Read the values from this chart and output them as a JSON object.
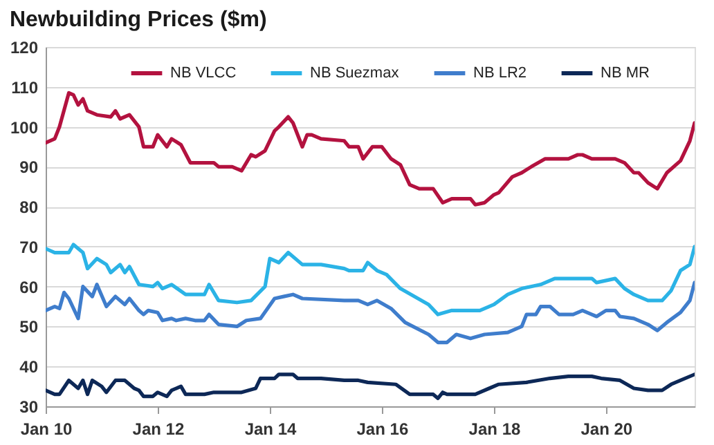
{
  "chart_data": {
    "type": "line",
    "title": "Newbuilding Prices ($m)",
    "xlim": [
      "2010-01",
      "2021-08"
    ],
    "xticks": [
      {
        "value": "2010-01",
        "label": "Jan 10"
      },
      {
        "value": "2012-01",
        "label": "Jan 12"
      },
      {
        "value": "2014-01",
        "label": "Jan 14"
      },
      {
        "value": "2016-01",
        "label": "Jan 16"
      },
      {
        "value": "2018-01",
        "label": "Jan 18"
      },
      {
        "value": "2020-01",
        "label": "Jan 20"
      }
    ],
    "ylim": [
      30,
      120
    ],
    "yticks": [
      30,
      40,
      50,
      60,
      70,
      80,
      90,
      100,
      110,
      120
    ],
    "grid": "y",
    "legend": "top",
    "line_style": "solid",
    "marker": "none",
    "series": [
      {
        "name": "NB VLCC",
        "color": "#b3123f",
        "x": [
          "2010-01",
          "2010-03",
          "2010-04",
          "2010-06",
          "2010-07",
          "2010-08",
          "2010-09",
          "2010-10",
          "2010-12",
          "2011-03",
          "2011-04",
          "2011-05",
          "2011-07",
          "2011-09",
          "2011-10",
          "2011-12",
          "2012-01",
          "2012-03",
          "2012-04",
          "2012-06",
          "2012-08",
          "2013-01",
          "2013-02",
          "2013-05",
          "2013-07",
          "2013-09",
          "2013-10",
          "2013-12",
          "2014-02",
          "2014-03",
          "2014-05",
          "2014-06",
          "2014-08",
          "2014-09",
          "2014-10",
          "2014-12",
          "2015-05",
          "2015-06",
          "2015-08",
          "2015-09",
          "2015-11",
          "2016-01",
          "2016-03",
          "2016-05",
          "2016-07",
          "2016-09",
          "2016-12",
          "2017-02",
          "2017-04",
          "2017-08",
          "2017-09",
          "2017-11",
          "2018-01",
          "2018-02",
          "2018-05",
          "2018-07",
          "2018-09",
          "2018-12",
          "2019-05",
          "2019-07",
          "2019-08",
          "2019-10",
          "2020-03",
          "2020-05",
          "2020-07",
          "2020-08",
          "2020-10",
          "2020-12",
          "2021-02",
          "2021-05",
          "2021-07",
          "2021-08"
        ],
        "values": [
          96,
          97,
          100,
          108.5,
          108,
          105.5,
          107,
          104,
          103,
          102.5,
          104,
          102,
          103,
          100,
          95,
          95,
          98,
          95,
          97,
          95.5,
          91,
          91,
          90,
          90,
          89,
          93,
          92.5,
          94,
          99,
          100,
          102.5,
          101,
          95,
          98,
          98,
          97,
          96.5,
          95,
          95,
          92,
          95,
          95,
          92,
          90.5,
          85.5,
          84.5,
          84.5,
          81,
          82,
          82,
          80.5,
          81,
          83,
          83.5,
          87.5,
          88.5,
          90,
          92,
          92,
          93,
          93,
          92,
          92,
          91,
          88.5,
          88.5,
          86,
          84.5,
          88.5,
          91.5,
          96.5,
          101
        ]
      },
      {
        "name": "NB Suezmax",
        "color": "#2bb3e6",
        "x": [
          "2010-01",
          "2010-03",
          "2010-06",
          "2010-07",
          "2010-09",
          "2010-10",
          "2010-12",
          "2011-02",
          "2011-03",
          "2011-05",
          "2011-06",
          "2011-07",
          "2011-09",
          "2011-12",
          "2012-01",
          "2012-02",
          "2012-04",
          "2012-07",
          "2012-11",
          "2012-12",
          "2013-02",
          "2013-06",
          "2013-09",
          "2013-12",
          "2014-01",
          "2014-03",
          "2014-05",
          "2014-08",
          "2014-12",
          "2015-05",
          "2015-06",
          "2015-09",
          "2015-10",
          "2015-12",
          "2016-02",
          "2016-05",
          "2016-11",
          "2017-01",
          "2017-04",
          "2017-10",
          "2018-01",
          "2018-04",
          "2018-07",
          "2018-11",
          "2019-02",
          "2019-10",
          "2019-11",
          "2020-03",
          "2020-05",
          "2020-07",
          "2020-10",
          "2021-01",
          "2021-03",
          "2021-05",
          "2021-07",
          "2021-08"
        ],
        "values": [
          69.5,
          68.5,
          68.5,
          70.5,
          68.5,
          64.5,
          67,
          65.5,
          63.5,
          65.5,
          63.5,
          65,
          60.5,
          60,
          61,
          59.5,
          60.5,
          58,
          58,
          60.5,
          56.5,
          56,
          56.5,
          60,
          67,
          66,
          68.5,
          65.5,
          65.5,
          64.5,
          64,
          64,
          66,
          64,
          63,
          59.5,
          55.5,
          53,
          54,
          54,
          55.5,
          58,
          59.5,
          60.5,
          62,
          62,
          61,
          62,
          59.5,
          58,
          56.5,
          56.5,
          59,
          64,
          65.5,
          70
        ]
      },
      {
        "name": "NB LR2",
        "color": "#3f7dcc",
        "x": [
          "2010-01",
          "2010-03",
          "2010-04",
          "2010-05",
          "2010-06",
          "2010-08",
          "2010-09",
          "2010-11",
          "2010-12",
          "2011-02",
          "2011-04",
          "2011-05",
          "2011-06",
          "2011-07",
          "2011-09",
          "2011-10",
          "2011-11",
          "2012-01",
          "2012-02",
          "2012-04",
          "2012-05",
          "2012-07",
          "2012-09",
          "2012-11",
          "2012-12",
          "2013-02",
          "2013-06",
          "2013-08",
          "2013-11",
          "2014-02",
          "2014-04",
          "2014-06",
          "2014-08",
          "2015-05",
          "2015-08",
          "2015-10",
          "2015-12",
          "2016-03",
          "2016-06",
          "2016-11",
          "2017-01",
          "2017-03",
          "2017-05",
          "2017-08",
          "2017-11",
          "2018-04",
          "2018-07",
          "2018-08",
          "2018-10",
          "2018-11",
          "2019-01",
          "2019-03",
          "2019-06",
          "2019-08",
          "2019-10",
          "2019-11",
          "2020-01",
          "2020-03",
          "2020-04",
          "2020-07",
          "2020-10",
          "2020-12",
          "2021-02",
          "2021-05",
          "2021-07",
          "2021-08"
        ],
        "values": [
          54,
          55,
          54.5,
          58.5,
          57,
          52,
          60,
          57.5,
          60.5,
          55,
          57.5,
          56.5,
          55.5,
          57,
          54,
          53,
          54,
          53.5,
          51.5,
          52,
          51.5,
          52,
          51.5,
          51.5,
          53,
          50.5,
          50,
          51.5,
          52,
          57,
          57.5,
          58,
          57,
          56.5,
          56.5,
          55.5,
          56.5,
          54.5,
          51,
          48,
          46,
          46,
          48,
          47,
          48,
          48.5,
          50,
          53,
          53,
          55,
          55,
          53,
          53,
          54,
          53,
          52.5,
          54,
          54,
          52.5,
          52,
          50.5,
          49,
          51,
          53.5,
          56.5,
          61
        ]
      },
      {
        "name": "NB MR",
        "color": "#0d2857",
        "x": [
          "2010-01",
          "2010-03",
          "2010-04",
          "2010-06",
          "2010-08",
          "2010-09",
          "2010-10",
          "2010-11",
          "2011-01",
          "2011-02",
          "2011-04",
          "2011-06",
          "2011-08",
          "2011-09",
          "2011-10",
          "2011-12",
          "2012-01",
          "2012-03",
          "2012-04",
          "2012-06",
          "2012-07",
          "2012-11",
          "2013-01",
          "2013-07",
          "2013-10",
          "2013-11",
          "2014-02",
          "2014-03",
          "2014-06",
          "2014-07",
          "2014-12",
          "2015-05",
          "2015-08",
          "2015-10",
          "2016-04",
          "2016-07",
          "2016-12",
          "2017-01",
          "2017-02",
          "2017-03",
          "2017-09",
          "2017-12",
          "2018-02",
          "2018-08",
          "2019-01",
          "2019-05",
          "2019-10",
          "2019-12",
          "2020-04",
          "2020-07",
          "2020-10",
          "2021-01",
          "2021-03",
          "2021-05",
          "2021-08"
        ],
        "values": [
          34,
          33,
          33,
          36.5,
          34.5,
          36.5,
          33,
          36.5,
          35,
          33.5,
          36.5,
          36.5,
          34.5,
          34,
          32.5,
          32.5,
          33.5,
          32.5,
          34,
          35,
          33,
          33,
          33.5,
          33.5,
          34.5,
          37,
          37,
          38,
          38,
          37,
          37,
          36.5,
          36.5,
          36,
          35.5,
          33,
          33,
          32,
          33.5,
          33,
          33,
          34.5,
          35.5,
          36,
          37,
          37.5,
          37.5,
          37,
          36.5,
          34.5,
          34,
          34,
          35.5,
          36.5,
          38
        ]
      }
    ]
  }
}
